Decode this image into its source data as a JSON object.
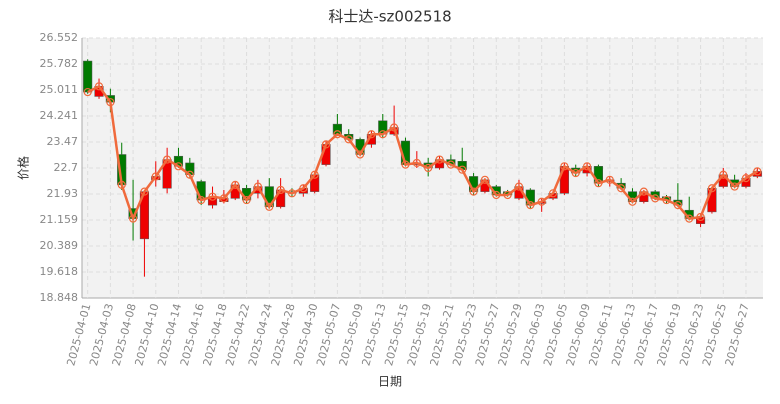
{
  "chart_data": {
    "type": "candlestick",
    "title": "科士达-sz002518",
    "x_label": "日期",
    "y_label": "价格",
    "categories": [
      "2025-04-01",
      null,
      "2025-04-03",
      null,
      "2025-04-08",
      null,
      "2025-04-10",
      null,
      "2025-04-14",
      null,
      "2025-04-16",
      null,
      "2025-04-18",
      null,
      "2025-04-22",
      null,
      "2025-04-24",
      null,
      "2025-04-28",
      null,
      "2025-04-30",
      null,
      "2025-05-07",
      null,
      "2025-05-09",
      null,
      "2025-05-13",
      null,
      "2025-05-15",
      null,
      "2025-05-19",
      null,
      "2025-05-21",
      null,
      "2025-05-23",
      null,
      "2025-05-27",
      null,
      "2025-05-29",
      null,
      "2025-06-03",
      null,
      "2025-06-05",
      null,
      "2025-06-09",
      null,
      "2025-06-11",
      null,
      "2025-06-13",
      null,
      "2025-06-17",
      null,
      "2025-06-19",
      null,
      "2025-06-23",
      null,
      "2025-06-25",
      null,
      "2025-06-27",
      null
    ],
    "open": [
      25.87,
      24.82,
      24.85,
      23.1,
      21.5,
      20.6,
      22.35,
      22.1,
      23.05,
      22.85,
      22.3,
      21.6,
      21.7,
      21.8,
      22.1,
      21.95,
      22.15,
      21.55,
      22.0,
      21.95,
      22.0,
      22.8,
      24.0,
      23.7,
      23.55,
      23.4,
      24.1,
      23.7,
      23.5,
      22.8,
      22.85,
      22.7,
      22.95,
      22.9,
      22.45,
      22.0,
      22.15,
      22.0,
      21.8,
      22.05,
      21.65,
      21.8,
      21.95,
      22.7,
      22.55,
      22.75,
      22.3,
      22.25,
      22.0,
      21.7,
      22.0,
      21.85,
      21.75,
      21.45,
      21.05,
      21.4,
      22.15,
      22.35,
      22.15,
      22.45
    ],
    "high": [
      25.92,
      25.35,
      25.05,
      23.45,
      22.35,
      22.0,
      22.9,
      23.3,
      23.3,
      23.0,
      22.35,
      22.15,
      22.05,
      22.3,
      22.2,
      22.35,
      22.4,
      22.4,
      22.1,
      22.2,
      22.6,
      23.5,
      24.3,
      23.85,
      23.6,
      23.8,
      24.3,
      24.55,
      23.6,
      23.2,
      23.0,
      23.05,
      23.1,
      23.3,
      22.55,
      22.4,
      22.2,
      22.05,
      22.35,
      22.1,
      21.8,
      22.0,
      22.85,
      22.8,
      22.85,
      22.8,
      22.45,
      22.4,
      22.1,
      22.05,
      22.05,
      21.9,
      22.25,
      21.85,
      21.35,
      22.15,
      22.7,
      22.5,
      22.55,
      22.7
    ],
    "low": [
      24.9,
      24.75,
      24.35,
      22.05,
      20.55,
      19.48,
      22.15,
      21.95,
      22.7,
      22.4,
      21.6,
      21.5,
      21.65,
      21.75,
      21.65,
      21.8,
      21.5,
      21.5,
      21.85,
      21.85,
      21.95,
      22.75,
      23.65,
      23.5,
      23.05,
      23.3,
      23.6,
      23.65,
      22.75,
      22.7,
      22.45,
      22.65,
      22.75,
      22.6,
      21.9,
      21.95,
      21.85,
      21.85,
      21.75,
      21.5,
      21.4,
      21.75,
      21.9,
      22.45,
      22.45,
      22.15,
      22.15,
      22.05,
      21.65,
      21.65,
      21.75,
      21.65,
      21.55,
      21.15,
      20.95,
      21.35,
      22.1,
      22.1,
      22.1,
      22.4
    ],
    "close": [
      24.95,
      25.12,
      24.65,
      22.2,
      21.2,
      22.0,
      22.45,
      22.95,
      22.75,
      22.5,
      21.75,
      21.85,
      21.8,
      22.2,
      21.75,
      22.15,
      21.55,
      22.05,
      21.95,
      22.1,
      22.5,
      23.4,
      23.7,
      23.55,
      23.1,
      23.7,
      23.7,
      23.9,
      22.8,
      22.85,
      22.7,
      22.95,
      22.8,
      22.65,
      22.0,
      22.35,
      21.9,
      21.9,
      22.15,
      21.6,
      21.7,
      21.95,
      22.75,
      22.55,
      22.75,
      22.25,
      22.35,
      22.1,
      21.7,
      22.0,
      21.8,
      21.75,
      21.6,
      21.2,
      21.25,
      22.1,
      22.5,
      22.15,
      22.4,
      22.6
    ],
    "up_color": "#ee0000",
    "down_color": "#007a00",
    "line_color": "#f06a3c",
    "ylim": [
      18.848,
      26.552
    ],
    "yticks": [
      18.848,
      19.618,
      20.389,
      21.159,
      21.93,
      22.7,
      23.47,
      24.241,
      25.011,
      25.782,
      26.552
    ],
    "grid": true
  }
}
